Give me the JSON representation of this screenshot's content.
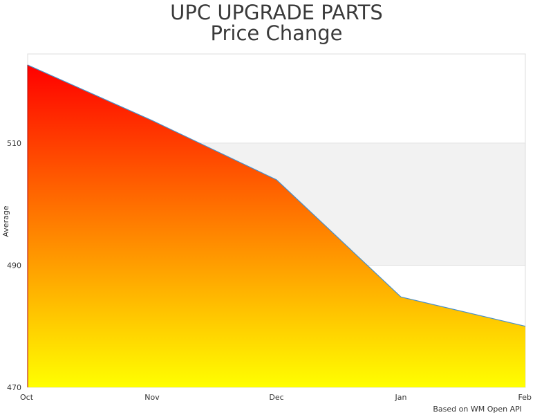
{
  "chart_data": {
    "type": "area",
    "title": [
      "UPC UPGRADE PARTS",
      "Price Change"
    ],
    "xlabel": "",
    "ylabel": "Average",
    "categories": [
      "Oct",
      "Nov",
      "Dec",
      "Jan",
      "Feb"
    ],
    "x": [
      0,
      1,
      2,
      3,
      4
    ],
    "series": [
      {
        "values": [
          522.8,
          513.7,
          504.0,
          484.8,
          480.0
        ]
      }
    ],
    "ylim": [
      470,
      524.6
    ],
    "yticks": [
      470,
      490,
      510
    ],
    "plot_band": [
      490,
      510
    ],
    "grid": false,
    "legend": "none",
    "credit": "Based on WM Open API",
    "colors": {
      "fill_top": "#ff0000",
      "fill_bottom": "#ffff00",
      "line": "#4a90c8",
      "band": "#f2f2f2",
      "frame": "#dddddd",
      "band_edge": "#e0e0e0"
    }
  }
}
